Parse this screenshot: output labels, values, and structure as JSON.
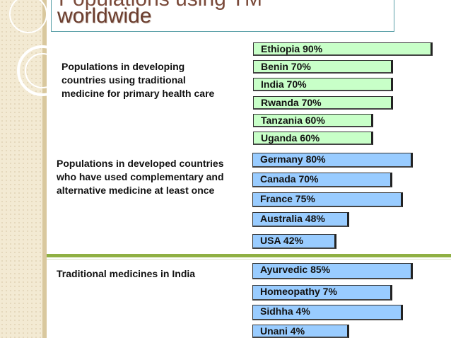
{
  "title": {
    "top_partial": "Populations using TM",
    "main": "worldwide"
  },
  "sections": [
    {
      "label": "Populations in developing countries using traditional medicine for primary health care",
      "items": [
        "Ethiopia 90%",
        "Benin 70%",
        "India 70%",
        "Rwanda 70%",
        "Tanzania 60%",
        "Uganda 60%"
      ]
    },
    {
      "label": "Populations in developed countries who have used complementary and alternative medicine at least once",
      "items": [
        "Germany 80%",
        "Canada 70%",
        "France 75%",
        "Australia 48%",
        "USA 42%"
      ]
    },
    {
      "label": "Traditional medicines in India",
      "items": [
        "Ayurvedic 85%",
        "Homeopathy 7%",
        "Sidhha 4%",
        "Unani 4%"
      ]
    }
  ],
  "colors": {
    "developing_bars": "#c8ffc8",
    "other_bars": "#99ccff",
    "title": "#6b3d2e",
    "divider": "#8fb043"
  }
}
